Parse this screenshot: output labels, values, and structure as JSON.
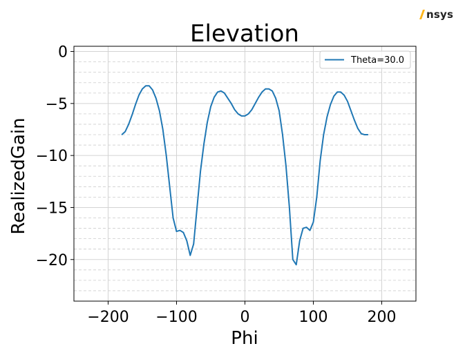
{
  "brand": {
    "logo_text": "nsys",
    "accent_color": "#ffb71b"
  },
  "chart_data": {
    "type": "line",
    "title": "Elevation",
    "xlabel": "Phi",
    "ylabel": "RealizedGain",
    "xlim": [
      -250,
      250
    ],
    "ylim": [
      -24,
      0.5
    ],
    "x_ticks": [
      -200,
      -100,
      0,
      100,
      200
    ],
    "x_tick_labels": [
      "−200",
      "−100",
      "0",
      "100",
      "200"
    ],
    "y_ticks": [
      0,
      -5,
      -10,
      -15,
      -20
    ],
    "y_tick_labels": [
      "0",
      "−5",
      "−10",
      "−15",
      "−20"
    ],
    "grid": "major solid, minor dashed",
    "legend_position": "top-right",
    "series": [
      {
        "name": "Theta=30.0",
        "color": "#1f77b4",
        "x": [
          -180,
          -175,
          -170,
          -165,
          -160,
          -155,
          -150,
          -145,
          -140,
          -135,
          -130,
          -125,
          -120,
          -115,
          -110,
          -105,
          -100,
          -95,
          -90,
          -85,
          -80,
          -75,
          -70,
          -65,
          -60,
          -55,
          -50,
          -45,
          -40,
          -35,
          -30,
          -25,
          -20,
          -15,
          -10,
          -5,
          0,
          5,
          10,
          15,
          20,
          25,
          30,
          35,
          40,
          45,
          50,
          55,
          60,
          65,
          70,
          75,
          80,
          85,
          90,
          95,
          100,
          105,
          110,
          115,
          120,
          125,
          130,
          135,
          140,
          145,
          150,
          155,
          160,
          165,
          170,
          175,
          180
        ],
        "y": [
          -8.0,
          -7.7,
          -7.0,
          -6.1,
          -5.1,
          -4.2,
          -3.6,
          -3.3,
          -3.3,
          -3.7,
          -4.5,
          -5.7,
          -7.5,
          -10.0,
          -13.0,
          -16.0,
          -17.3,
          -17.2,
          -17.4,
          -18.2,
          -19.6,
          -18.5,
          -15.0,
          -11.5,
          -8.9,
          -6.8,
          -5.3,
          -4.4,
          -3.9,
          -3.8,
          -4.0,
          -4.5,
          -5.0,
          -5.6,
          -6.0,
          -6.2,
          -6.2,
          -6.0,
          -5.6,
          -5.0,
          -4.4,
          -3.9,
          -3.6,
          -3.6,
          -3.8,
          -4.5,
          -5.7,
          -8.0,
          -11.0,
          -15.0,
          -20.0,
          -20.5,
          -18.2,
          -17.0,
          -16.9,
          -17.2,
          -16.4,
          -14.0,
          -10.5,
          -8.0,
          -6.3,
          -5.1,
          -4.3,
          -3.9,
          -3.9,
          -4.2,
          -4.8,
          -5.7,
          -6.6,
          -7.4,
          -7.9,
          -8.0,
          -8.0
        ]
      }
    ]
  }
}
